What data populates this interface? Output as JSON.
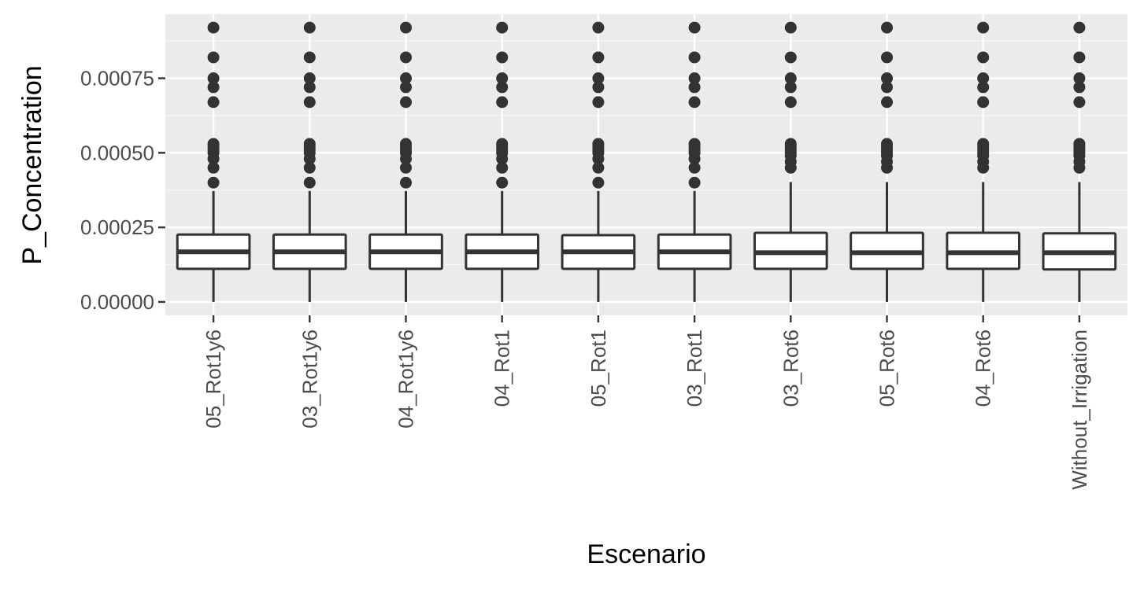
{
  "chart_data": {
    "type": "boxplot",
    "xlabel": "Escenario",
    "ylabel": "P_Concentration",
    "ylim": [
      -4.5e-05,
      0.000965
    ],
    "y_ticks": [
      0.0,
      0.00025,
      0.0005,
      0.00075
    ],
    "y_tick_labels": [
      "0.00000",
      "0.00025",
      "0.00050",
      "0.00075"
    ],
    "grid": true,
    "legend": "none",
    "categories": [
      "05_Rot1y6",
      "03_Rot1y6",
      "04_Rot1y6",
      "04_Rot1",
      "05_Rot1",
      "03_Rot1",
      "03_Rot6",
      "05_Rot6",
      "04_Rot6",
      "Without_Irrigation"
    ],
    "boxes": [
      {
        "category": "05_Rot1y6",
        "whisker_low": 0.0,
        "q1": 0.000111,
        "median": 0.000168,
        "q3": 0.000226,
        "whisker_high": 0.000372,
        "outliers": [
          0.0004,
          0.00045,
          0.00048,
          0.0005,
          0.00051,
          0.00052,
          0.00053,
          0.00067,
          0.00072,
          0.00075,
          0.00082,
          0.00092
        ]
      },
      {
        "category": "03_Rot1y6",
        "whisker_low": 0.0,
        "q1": 0.000111,
        "median": 0.000168,
        "q3": 0.000226,
        "whisker_high": 0.000372,
        "outliers": [
          0.0004,
          0.00045,
          0.00048,
          0.0005,
          0.00051,
          0.00052,
          0.00053,
          0.00067,
          0.00072,
          0.00075,
          0.00082,
          0.00092
        ]
      },
      {
        "category": "04_Rot1y6",
        "whisker_low": 0.0,
        "q1": 0.000111,
        "median": 0.000168,
        "q3": 0.000226,
        "whisker_high": 0.000372,
        "outliers": [
          0.0004,
          0.00045,
          0.00048,
          0.0005,
          0.00051,
          0.00052,
          0.00053,
          0.00067,
          0.00072,
          0.00075,
          0.00082,
          0.00092
        ]
      },
      {
        "category": "04_Rot1",
        "whisker_low": 0.0,
        "q1": 0.000111,
        "median": 0.000168,
        "q3": 0.000226,
        "whisker_high": 0.000372,
        "outliers": [
          0.0004,
          0.00045,
          0.00048,
          0.0005,
          0.00051,
          0.00052,
          0.00053,
          0.00067,
          0.00072,
          0.00075,
          0.00082,
          0.00092
        ]
      },
      {
        "category": "05_Rot1",
        "whisker_low": 0.0,
        "q1": 0.000111,
        "median": 0.000168,
        "q3": 0.000224,
        "whisker_high": 0.000372,
        "outliers": [
          0.0004,
          0.00045,
          0.00048,
          0.0005,
          0.00051,
          0.00052,
          0.00053,
          0.00067,
          0.00072,
          0.00075,
          0.00082,
          0.00092
        ]
      },
      {
        "category": "03_Rot1",
        "whisker_low": 0.0,
        "q1": 0.000111,
        "median": 0.000168,
        "q3": 0.000226,
        "whisker_high": 0.000372,
        "outliers": [
          0.0004,
          0.00045,
          0.00048,
          0.0005,
          0.00051,
          0.00052,
          0.00053,
          0.00067,
          0.00072,
          0.00075,
          0.00082,
          0.00092
        ]
      },
      {
        "category": "03_Rot6",
        "whisker_low": 0.0,
        "q1": 0.000111,
        "median": 0.000165,
        "q3": 0.000232,
        "whisker_high": 0.000402,
        "outliers": [
          0.00045,
          0.00047,
          0.00049,
          0.0005,
          0.00051,
          0.00052,
          0.00053,
          0.00067,
          0.00072,
          0.00075,
          0.00082,
          0.00092
        ]
      },
      {
        "category": "05_Rot6",
        "whisker_low": 0.0,
        "q1": 0.000111,
        "median": 0.000165,
        "q3": 0.000232,
        "whisker_high": 0.000402,
        "outliers": [
          0.00045,
          0.00047,
          0.00049,
          0.0005,
          0.00051,
          0.00052,
          0.00053,
          0.00067,
          0.00072,
          0.00075,
          0.00082,
          0.00092
        ]
      },
      {
        "category": "04_Rot6",
        "whisker_low": 0.0,
        "q1": 0.000111,
        "median": 0.000165,
        "q3": 0.000232,
        "whisker_high": 0.000402,
        "outliers": [
          0.00045,
          0.00047,
          0.00049,
          0.0005,
          0.00051,
          0.00052,
          0.00053,
          0.00067,
          0.00072,
          0.00075,
          0.00082,
          0.00092
        ]
      },
      {
        "category": "Without_Irrigation",
        "whisker_low": 0.0,
        "q1": 0.000109,
        "median": 0.000165,
        "q3": 0.00023,
        "whisker_high": 0.000402,
        "outliers": [
          0.00045,
          0.00047,
          0.00049,
          0.0005,
          0.00051,
          0.00052,
          0.00053,
          0.00067,
          0.00072,
          0.00075,
          0.00082,
          0.00092
        ]
      }
    ],
    "colors": {
      "panel_background": "#ebebeb",
      "grid_major": "#ffffff",
      "grid_minor": "#f5f5f5",
      "box_stroke": "#333333",
      "box_fill": "#ffffff",
      "outlier": "#333333",
      "tick_label": "#4d4d4d",
      "tick_mark": "#333333",
      "axis_title": "#000000"
    }
  }
}
